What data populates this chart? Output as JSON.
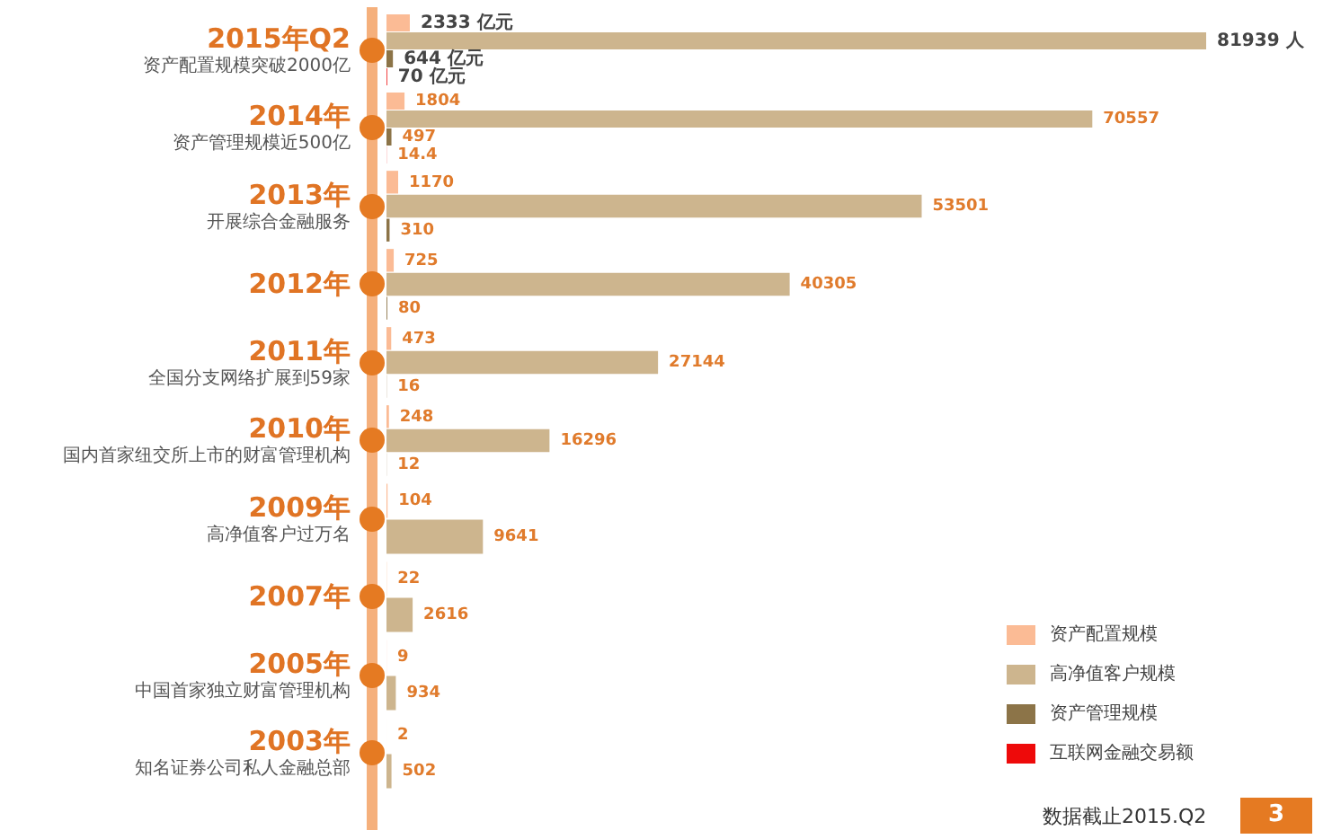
{
  "chart_data": {
    "type": "bar",
    "orientation": "horizontal",
    "categories": [
      "2015年Q2",
      "2014年",
      "2013年",
      "2012年",
      "2011年",
      "2010年",
      "2009年",
      "2007年",
      "2005年",
      "2003年"
    ],
    "series": [
      {
        "name": "资产配置规模",
        "color": "#fbbb95",
        "values": [
          2333,
          1804,
          1170,
          725,
          473,
          248,
          104,
          22,
          9,
          2
        ],
        "value_labels": [
          "2333 亿元",
          "1804",
          "1170",
          "725",
          "473",
          "248",
          "104",
          "22",
          "9",
          "2"
        ]
      },
      {
        "name": "高净值客户规模",
        "color": "#cdb58e",
        "values": [
          81939,
          70557,
          53501,
          40305,
          27144,
          16296,
          9641,
          2616,
          934,
          502
        ],
        "value_labels": [
          "81939 人",
          "70557",
          "53501",
          "40305",
          "27144",
          "16296",
          "9641",
          "2616",
          "934",
          "502"
        ]
      },
      {
        "name": "资产管理规模",
        "color": "#8c7448",
        "values": [
          644,
          497,
          310,
          80,
          16,
          12,
          null,
          null,
          null,
          null
        ],
        "value_labels": [
          "644 亿元",
          "497",
          "310",
          "80",
          "16",
          "12",
          null,
          null,
          null,
          null
        ]
      },
      {
        "name": "互联网金融交易额",
        "color": "#ee0a0a",
        "values": [
          70,
          14.4,
          null,
          null,
          null,
          null,
          null,
          null,
          null,
          null
        ],
        "value_labels": [
          "70 亿元",
          "14.4",
          null,
          null,
          null,
          null,
          null,
          null,
          null,
          null
        ]
      }
    ],
    "xlim": [
      0,
      81939
    ],
    "tick_labels": false,
    "legend": "bottom right",
    "y2_categories": [
      "资产配置规模突破2000亿",
      "资产管理规模近500亿",
      "开展综合金融服务",
      null,
      "全国分支网络扩展到59家",
      "国内首家纽交所上市的财富管理机构",
      "高净值客户过万名",
      null,
      "中国首家独立财富管理机构",
      "知名证券公司私人金融总部"
    ],
    "annotations": [
      "数据截止2015.Q2",
      "3"
    ]
  }
}
